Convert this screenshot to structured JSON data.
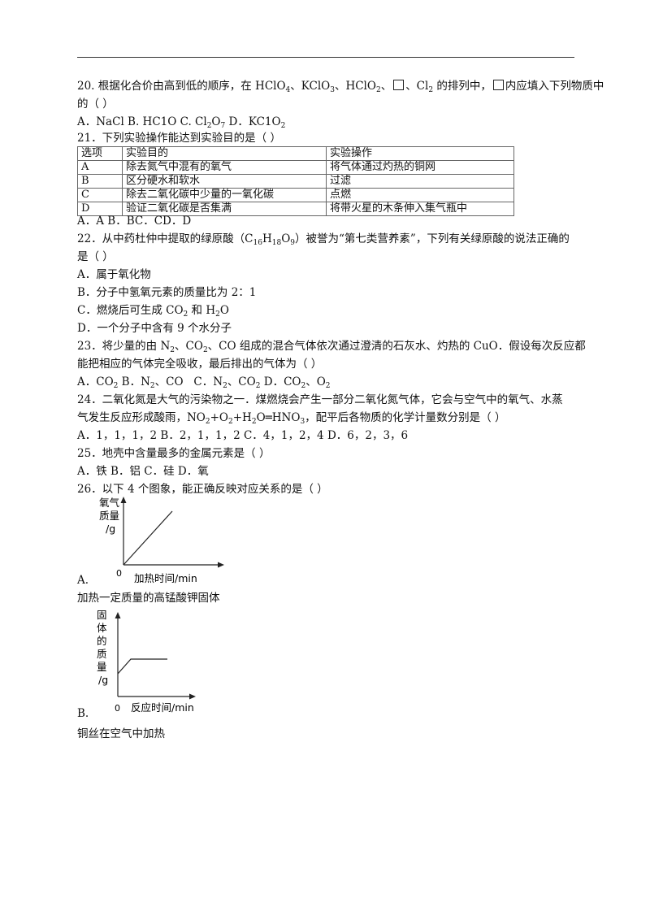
{
  "q20": {
    "line1": "20. 根据化合价由高到低的顺序，在 HClO₄、KClO₃、HClO₂、□、Cl₂ 的排列中，□内应填入下列物质中",
    "line2": "的（      ）",
    "options": "A．NaCl B. HC1O C. Cl₂O₇ D．KC1O₂"
  },
  "q21": {
    "stem": "21．下列实验操作能达到实验目的是（      ）",
    "header": [
      "选项",
      "实验目的",
      "实验操作"
    ],
    "rows": [
      [
        "A",
        "除去氮气中混有的氧气",
        "将气体通过灼热的铜网"
      ],
      [
        "B",
        "区分硬水和软水",
        "过滤"
      ],
      [
        "C",
        "除去二氧化碳中少量的一氧化碳",
        "点燃"
      ],
      [
        "D",
        "验证二氧化碳是否集满",
        "将带火星的木条伸入集气瓶中"
      ]
    ],
    "options": "A．A     B．BC．CD．D"
  },
  "q22": {
    "line1": "22．从中药杜仲中提取的绿原酸（C₁₆H₁₈O₉）被誉为“第七类营养素”，下列有关绿原酸的说法正确的",
    "line2": "是（   ）",
    "a": "A．属于氧化物",
    "b": "B．分子中氢氧元素的质量比为 2：1",
    "c": "C．燃烧后可生成 CO₂ 和 H₂O",
    "d": "D．一个分子中含有 9 个水分子"
  },
  "q23": {
    "line1": "23．将少量的由 N₂、CO₂、CO 组成的混合气体依次通过澄清的石灰水、灼热的 CuO．假设每次反应都",
    "line2": "能把相应的气体完全吸收，最后排出的气体为（      ）",
    "options": "A．CO₂  B．N₂、CO   C．N₂、CO₂  D．CO₂、O₂"
  },
  "q24": {
    "line1": "24．二氧化氮是大气的污染物之一．煤燃烧会产生一部分二氧化氮气体，它会与空气中的氧气、水蒸",
    "line2": "气发生反应形成酸雨，NO₂+O₂+H₂O═HNO₃，配平后各物质的化学计量数分别是（      ）",
    "options": "A．1，1，1，2 B．2，1，1，2 C．4，1，2，4 D．6，2，3，6"
  },
  "q25": {
    "stem": "25．地壳中含量最多的金属元素是（      ）",
    "options": "A．铁   B．铝   C．硅   D．氧"
  },
  "q26": {
    "stem": "26．以下 4 个图象，能正确反映对应关系的是（      ）",
    "graphA": {
      "ylabel": [
        "氧气",
        "质量",
        "/g"
      ],
      "xlabel": "加热时间/min",
      "origin": "0",
      "letter": "A.",
      "caption": "加热一定质量的高锰酸钾固体"
    },
    "graphB": {
      "ylabel": [
        "固",
        "体",
        "的",
        "质",
        "量",
        "/g"
      ],
      "xlabel": "反应时间/min",
      "origin": "0",
      "letter": "B.",
      "caption": "铜丝在空气中加热"
    }
  }
}
